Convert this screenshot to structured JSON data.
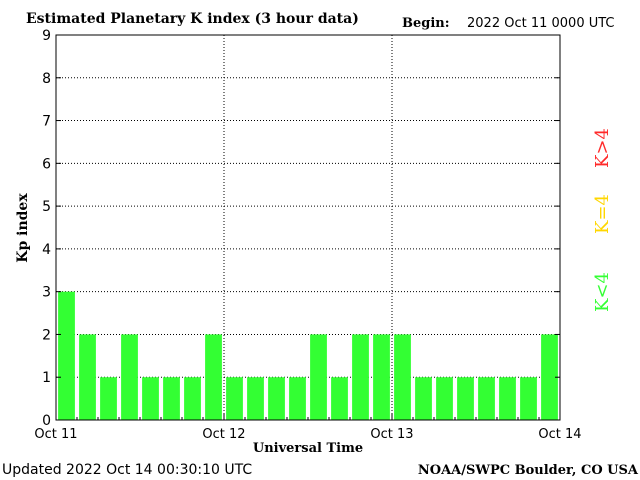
{
  "header": {
    "title": "Estimated Planetary K index (3 hour data)",
    "begin_label": "Begin:",
    "begin_value": "2022 Oct 11 0000 UTC"
  },
  "footer": {
    "updated": "Updated 2022 Oct 14 00:30:10 UTC",
    "credit": "NOAA/SWPC Boulder, CO USA"
  },
  "legend": [
    {
      "label": "K<4",
      "color": "#33ff33"
    },
    {
      "label": "K=4",
      "color": "#ffd700"
    },
    {
      "label": "K>4",
      "color": "#ff2a2a"
    }
  ],
  "colors": {
    "bar": "#33ff33",
    "frame": "#000000",
    "background": "#ffffff"
  },
  "chart_data": {
    "type": "bar",
    "title": "Estimated Planetary K index (3 hour data)",
    "xlabel": "Universal Time",
    "ylabel": "Kp index",
    "ylim": [
      0,
      9
    ],
    "yticks": [
      0,
      1,
      2,
      3,
      4,
      5,
      6,
      7,
      8,
      9
    ],
    "xtick_labels": [
      "Oct 11",
      "Oct 12",
      "Oct 13",
      "Oct 14"
    ],
    "grid": true,
    "series": [
      {
        "values": [
          3,
          2,
          1,
          2,
          1,
          1,
          1,
          2,
          1,
          1,
          1,
          1,
          2,
          1,
          2,
          2,
          2,
          1,
          1,
          1,
          1,
          1,
          1,
          2
        ]
      }
    ]
  }
}
